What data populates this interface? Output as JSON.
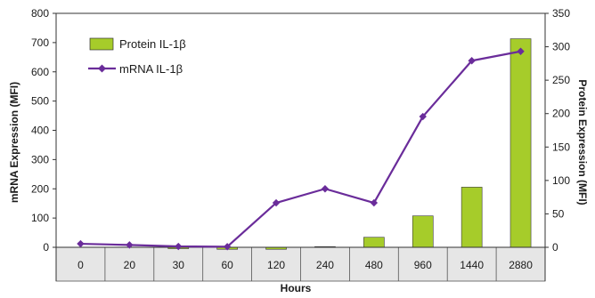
{
  "chart_data": {
    "type": "bar",
    "categories": [
      "0",
      "20",
      "30",
      "60",
      "120",
      "240",
      "480",
      "960",
      "1440",
      "2880"
    ],
    "xlabel": "Hours",
    "ylabel_left": "mRNA Expression (MFI)",
    "ylabel_right": "Protein Expression (MFI)",
    "ylim_left": [
      0,
      800
    ],
    "ylim_right": [
      0,
      350
    ],
    "yticks_left": [
      0,
      100,
      200,
      300,
      400,
      500,
      600,
      700,
      800
    ],
    "yticks_right": [
      0,
      50,
      100,
      150,
      200,
      250,
      300,
      350
    ],
    "grid": false,
    "legend_position": "top-left",
    "series": [
      {
        "name": "Protein IL-1β",
        "kind": "bar",
        "axis": "right",
        "color": "#a6cc2a",
        "values": [
          0,
          0,
          -2,
          -3,
          -3,
          1,
          15,
          47,
          90,
          312
        ]
      },
      {
        "name": "mRNA IL-1β",
        "kind": "line",
        "axis": "left",
        "color": "#6a2c9a",
        "marker": "diamond",
        "values": [
          12,
          8,
          3,
          2,
          152,
          200,
          152,
          447,
          638,
          670
        ]
      }
    ],
    "category_table_fill": "#e6e6e6"
  }
}
